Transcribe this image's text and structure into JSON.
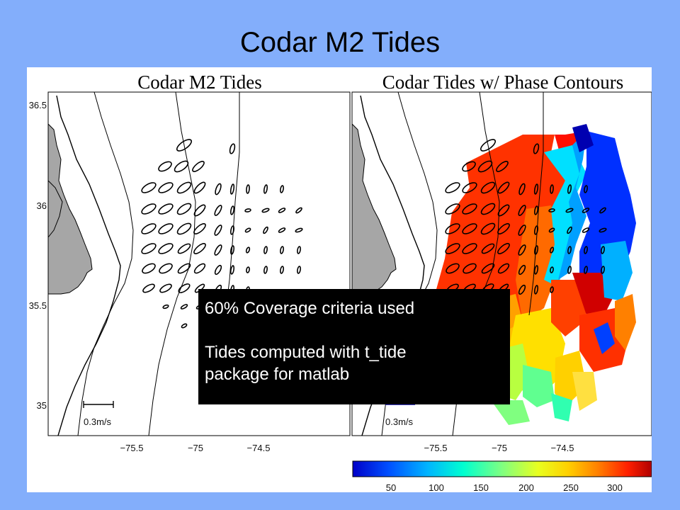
{
  "slide": {
    "title": "Codar M2 Tides"
  },
  "left_panel": {
    "title": "Codar M2 Tides",
    "y_ticks": [
      "36.5",
      "36",
      "35.5",
      "35"
    ],
    "x_ticks": [
      "−75.5",
      "−75",
      "−74.5"
    ],
    "scale_label": "0.3m/s"
  },
  "right_panel": {
    "title": "Codar Tides w/ Phase Contours",
    "x_ticks": [
      "−75.5",
      "−75",
      "−74.5"
    ],
    "scale_label": "0.3m/s"
  },
  "colorbar": {
    "ticks": [
      "50",
      "100",
      "150",
      "200",
      "250",
      "300"
    ],
    "colors": [
      "#0000c8",
      "#0050ff",
      "#00b4ff",
      "#00ffd0",
      "#80ff80",
      "#e8ff20",
      "#ffd000",
      "#ff8000",
      "#ff2000",
      "#b00000"
    ]
  },
  "note": {
    "line1": "60% Coverage criteria used",
    "line2": "Tides computed with t_tide",
    "line3": "package for matlab"
  },
  "colors": {
    "background": "#83aefb",
    "land": "#a6a6a6",
    "note_bg": "#000000"
  }
}
